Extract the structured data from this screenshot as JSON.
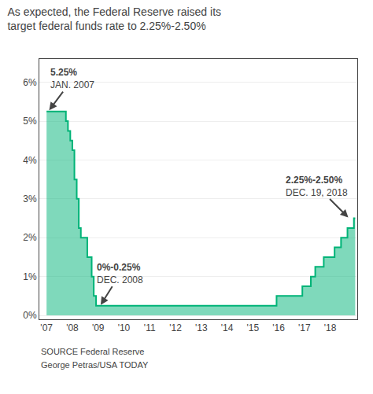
{
  "chart_data": {
    "type": "area",
    "title": [
      "As expected, the Federal Reserve raised its",
      "target federal funds rate to 2.25%-2.50%"
    ],
    "x": [
      2007.0,
      2007.08,
      2007.17,
      2007.25,
      2007.33,
      2007.42,
      2007.5,
      2007.58,
      2007.67,
      2007.75,
      2007.83,
      2007.92,
      2008.0,
      2008.08,
      2008.17,
      2008.25,
      2008.33,
      2008.5,
      2008.58,
      2008.75,
      2008.83,
      2008.92,
      2009.0,
      2015.0,
      2015.92,
      2015.92,
      2016.0,
      2016.92,
      2016.92,
      2017.0,
      2017.25,
      2017.25,
      2017.42,
      2017.42,
      2017.75,
      2017.75,
      2017.92,
      2018.0,
      2018.17,
      2018.17,
      2018.42,
      2018.42,
      2018.67,
      2018.67,
      2018.92,
      2018.92,
      2018.97
    ],
    "values": [
      5.25,
      5.25,
      5.25,
      5.25,
      5.25,
      5.25,
      5.25,
      5.25,
      5.25,
      5.0,
      4.75,
      4.5,
      4.25,
      3.5,
      3.0,
      2.25,
      2.0,
      2.0,
      1.5,
      1.0,
      0.5,
      0.25,
      0.25,
      0.25,
      0.25,
      0.5,
      0.5,
      0.5,
      0.75,
      0.75,
      0.75,
      1.0,
      1.0,
      1.25,
      1.25,
      1.5,
      1.5,
      1.5,
      1.5,
      1.75,
      1.75,
      2.0,
      2.0,
      2.25,
      2.25,
      2.5,
      2.5
    ],
    "color": "#00b377",
    "line_style": "step",
    "xlim": [
      2006.72,
      2019.05
    ],
    "xticks": [
      {
        "value": 2007,
        "label": "'07"
      },
      {
        "value": 2008,
        "label": "'08"
      },
      {
        "value": 2009,
        "label": "'09"
      },
      {
        "value": 2010,
        "label": "'10"
      },
      {
        "value": 2011,
        "label": "'11"
      },
      {
        "value": 2012,
        "label": "'12"
      },
      {
        "value": 2013,
        "label": "'13"
      },
      {
        "value": 2014,
        "label": "'14"
      },
      {
        "value": 2015,
        "label": "'15"
      },
      {
        "value": 2016,
        "label": "'16"
      },
      {
        "value": 2017,
        "label": "'17"
      },
      {
        "value": 2018,
        "label": "'18"
      }
    ],
    "ylim": [
      -0.1,
      6.6
    ],
    "yticks": [
      {
        "value": 0,
        "label": "0%"
      },
      {
        "value": 1,
        "label": "1%"
      },
      {
        "value": 2,
        "label": "2%"
      },
      {
        "value": 3,
        "label": "3%"
      },
      {
        "value": 4,
        "label": "4%"
      },
      {
        "value": 5,
        "label": "5%"
      },
      {
        "value": 6,
        "label": "6%"
      }
    ],
    "grid": "y",
    "annotations": [
      {
        "x": 2007.1,
        "y": 5.28,
        "lines": [
          "5.25%",
          "JAN. 2007"
        ]
      },
      {
        "x": 2009.1,
        "y": 0.27,
        "lines": [
          "0%-0.25%",
          "DEC. 2008"
        ]
      },
      {
        "x": 2018.7,
        "y": 2.52,
        "lines": [
          "2.25%-2.50%",
          "DEC. 19, 2018"
        ]
      }
    ],
    "source": [
      "SOURCE Federal Reserve",
      "George Petras/USA TODAY"
    ]
  }
}
